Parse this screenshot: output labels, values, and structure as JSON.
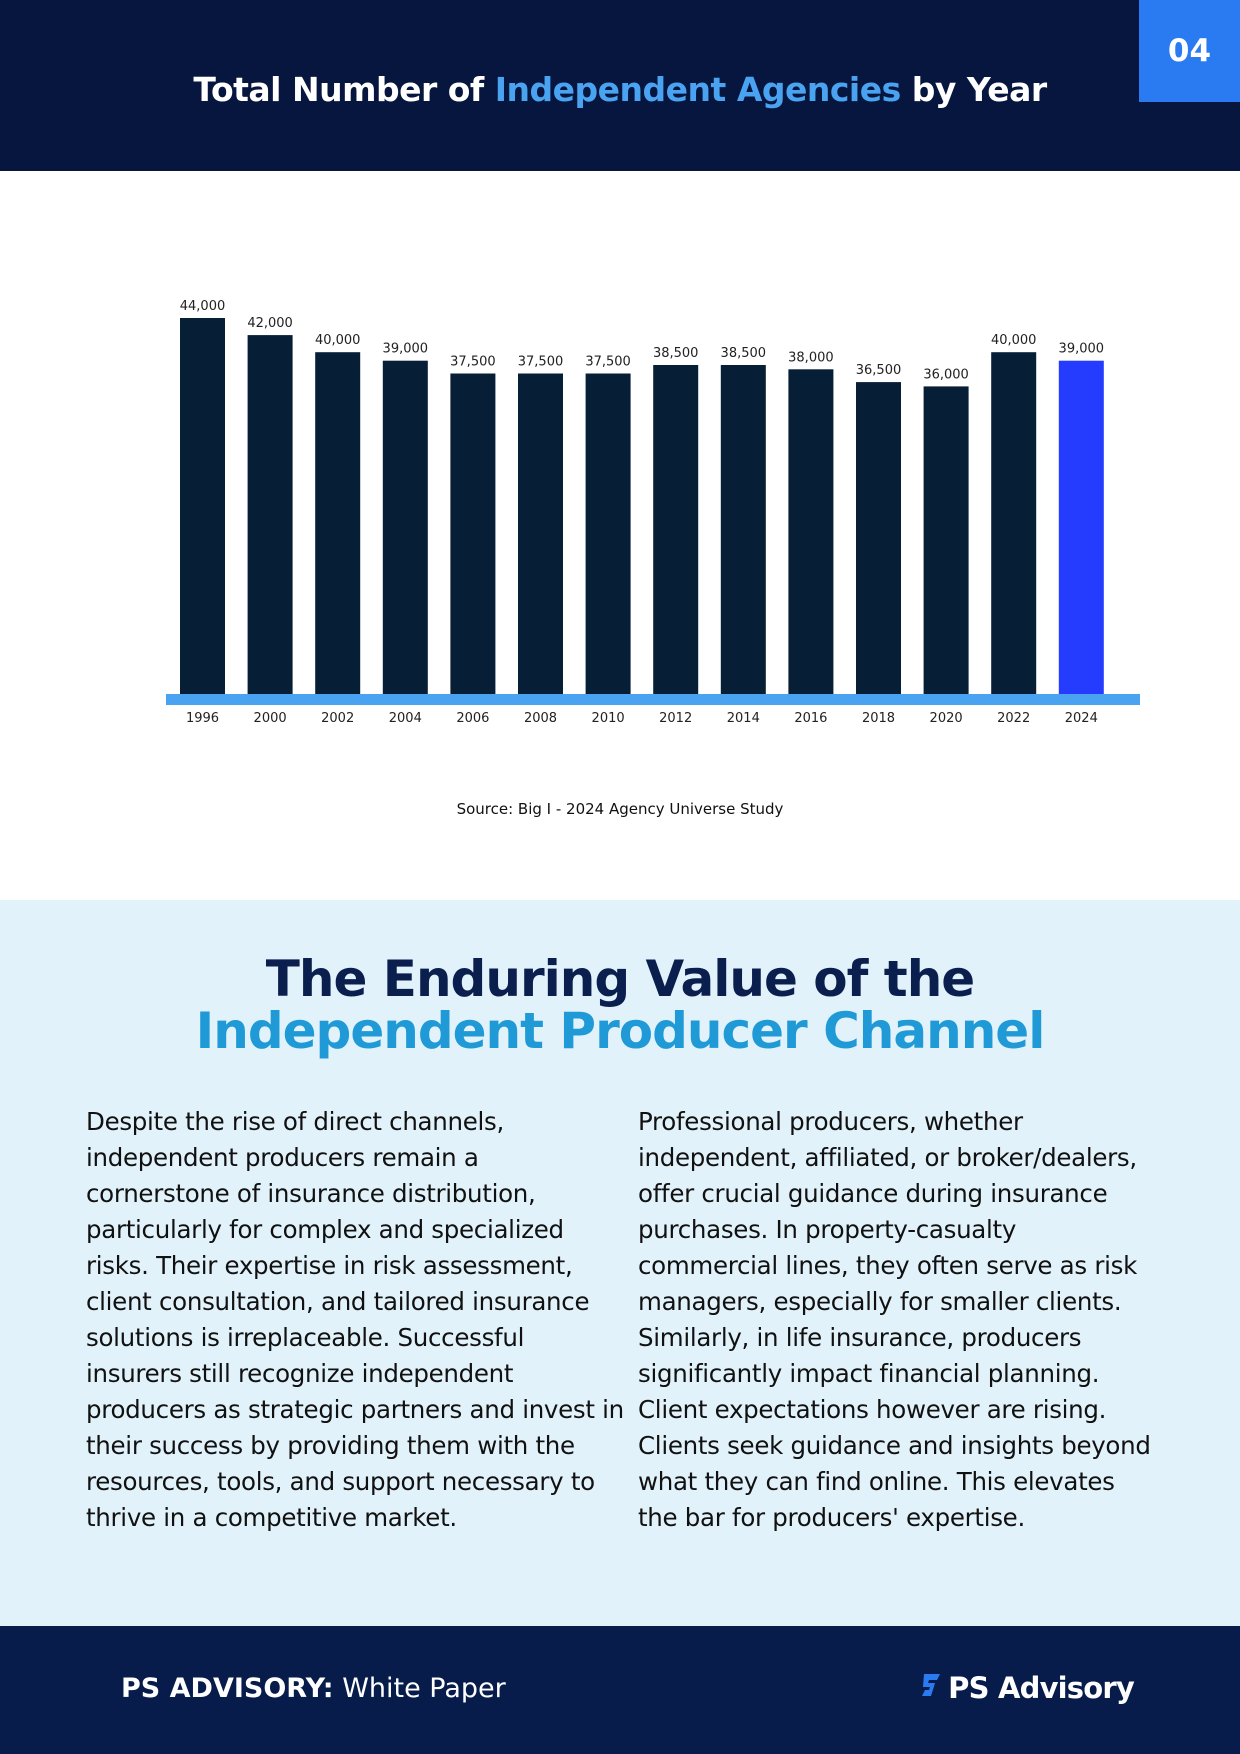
{
  "page_number": "04",
  "header": {
    "title_pre": "Total Number of ",
    "title_accent": "Independent Agencies",
    "title_post": " by Year"
  },
  "chart_data": {
    "type": "bar",
    "title": "Total Number of Independent Agencies by Year",
    "categories": [
      "1996",
      "2000",
      "2002",
      "2004",
      "2006",
      "2008",
      "2010",
      "2012",
      "2014",
      "2016",
      "2018",
      "2020",
      "2022",
      "2024"
    ],
    "values": [
      44000,
      42000,
      40000,
      39000,
      37500,
      37500,
      37500,
      38500,
      38500,
      38000,
      36500,
      36000,
      40000,
      39000
    ],
    "labels": [
      "44,000",
      "42,000",
      "40,000",
      "39,000",
      "37,500",
      "37,500",
      "37,500",
      "38,500",
      "38,500",
      "38,000",
      "36,500",
      "36,000",
      "40,000",
      "39,000"
    ],
    "ylim": [
      0,
      44000
    ],
    "highlight_index": 13,
    "bar_color": "#071f36",
    "highlight_color": "#253cff",
    "baseline_color": "#4aa3f0",
    "grid": false,
    "xlabel": "",
    "ylabel": ""
  },
  "source": "Source: Big I - 2024 Agency Universe Study",
  "section": {
    "heading_line1": "The Enduring Value of the",
    "heading_line2": "Independent Producer Channel",
    "left_paragraph": "Despite the rise of direct channels, independent producers remain a cornerstone of insurance distribution, particularly for complex and specialized risks. Their expertise in risk assessment, client consultation, and tailored insurance solutions is irreplaceable. Successful insurers still recognize independent producers as strategic partners and invest in their success by providing them with the resources, tools, and support necessary to thrive in a competitive market.",
    "right_paragraph": "Professional producers, whether independent, affiliated, or broker/dealers, offer crucial guidance during insurance purchases. In property-casualty commercial lines, they often serve as risk managers, especially for smaller clients. Similarly, in life insurance, producers significantly impact financial planning. Client expectations however are rising. Clients seek guidance and insights beyond what they can find online. This elevates the bar for producers' expertise."
  },
  "footer": {
    "brand_bold": "PS ADVISORY:",
    "brand_text": " White Paper",
    "logo_text": "PS Advisory",
    "logo_icon": "ps-logo-icon"
  }
}
